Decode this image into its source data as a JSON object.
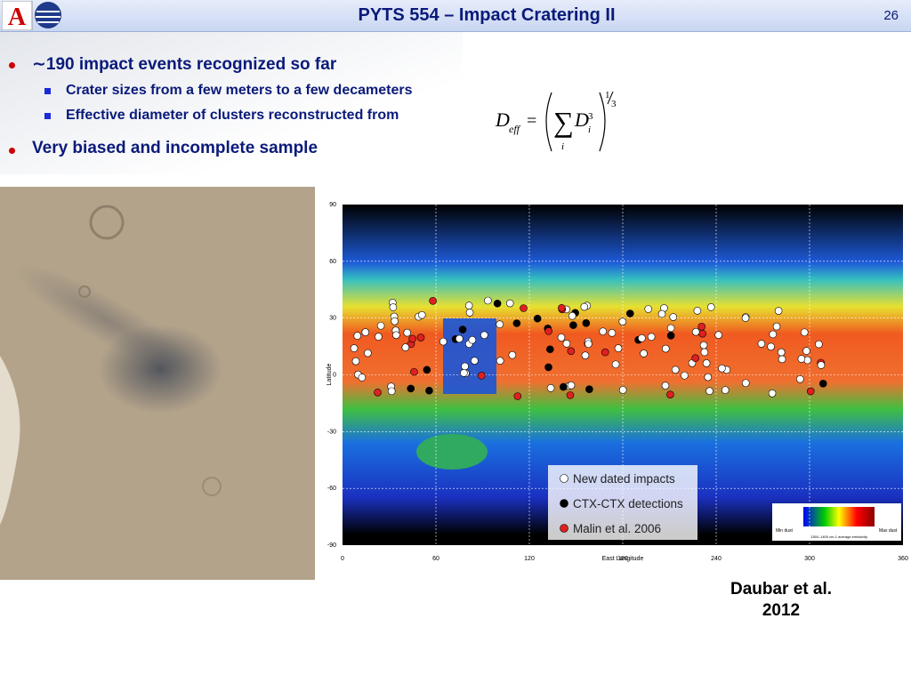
{
  "header": {
    "title": "PYTS 554 – Impact Cratering II",
    "page_number": "26"
  },
  "bullets": [
    {
      "text": "∼190 impact events recognized so far",
      "sub": [
        "Crater sizes from a few meters to a few decameters",
        "Effective diameter of clusters reconstructed from"
      ]
    },
    {
      "text": "Very biased and incomplete sample"
    }
  ],
  "formula": {
    "lhs": "D",
    "lhs_sub": "eff",
    "equals": "=",
    "sum": "∑",
    "sum_index": "i",
    "term": "D",
    "term_sub": "i",
    "term_sup": "3",
    "exponent_num": "1",
    "exponent_den": "3"
  },
  "map": {
    "y_axis_label": "Latitude",
    "x_axis_label": "East Longitude",
    "yticks": [
      "90",
      "60",
      "30",
      "0",
      "-30",
      "-60",
      "-90"
    ],
    "xticks": [
      "0",
      "60",
      "120",
      "180",
      "240",
      "300",
      "360"
    ],
    "legend": [
      "New dated impacts",
      "CTX-CTX detections",
      "Malin et al. 2006"
    ],
    "colorbar_left": "Min dust",
    "colorbar_right": "Max dust",
    "colorbar_label": "1350–1400 cm-1 average emissivity"
  },
  "citation": [
    "Daubar et al.",
    "2012"
  ]
}
